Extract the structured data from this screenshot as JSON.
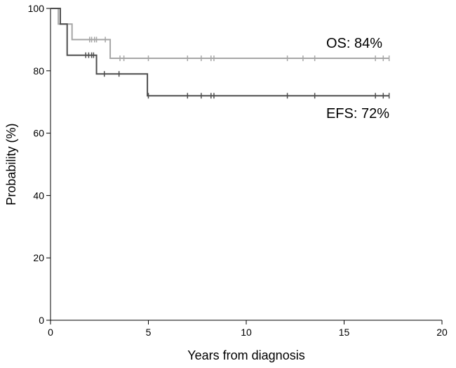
{
  "chart_data": {
    "type": "line",
    "title": "",
    "xlabel": "Years from diagnosis",
    "ylabel": "Probability (%)",
    "xlim": [
      0,
      20
    ],
    "ylim": [
      0,
      100
    ],
    "xticks": [
      "0",
      "5",
      "10",
      "15",
      "20"
    ],
    "yticks": [
      "0",
      "20",
      "40",
      "60",
      "80",
      "100"
    ],
    "grid": false,
    "series": [
      {
        "name": "OS",
        "annotation": "OS: 84%",
        "color": "#a6a6a6",
        "x": [
          0,
          0.4,
          0.4,
          1.1,
          1.1,
          3.05,
          3.05,
          17.3
        ],
        "y": [
          100,
          100,
          95,
          95,
          90,
          90,
          84,
          84
        ],
        "censored": [
          2.0,
          2.1,
          2.25,
          2.35,
          2.8,
          3.55,
          3.75,
          5.0,
          7.0,
          7.7,
          8.2,
          8.35,
          12.1,
          12.9,
          13.5,
          16.6,
          17.0,
          17.3
        ]
      },
      {
        "name": "EFS",
        "annotation": "EFS: 72%",
        "color": "#4d4d4d",
        "x": [
          0,
          0.5,
          0.5,
          0.85,
          0.85,
          2.35,
          2.35,
          4.95,
          4.95,
          17.3
        ],
        "y": [
          100,
          100,
          95,
          95,
          85,
          85,
          79,
          79,
          72,
          72
        ],
        "censored": [
          1.8,
          1.95,
          2.1,
          2.2,
          2.75,
          3.5,
          5.0,
          7.0,
          7.7,
          8.2,
          8.35,
          12.1,
          13.5,
          16.6,
          17.0,
          17.3
        ]
      }
    ]
  }
}
